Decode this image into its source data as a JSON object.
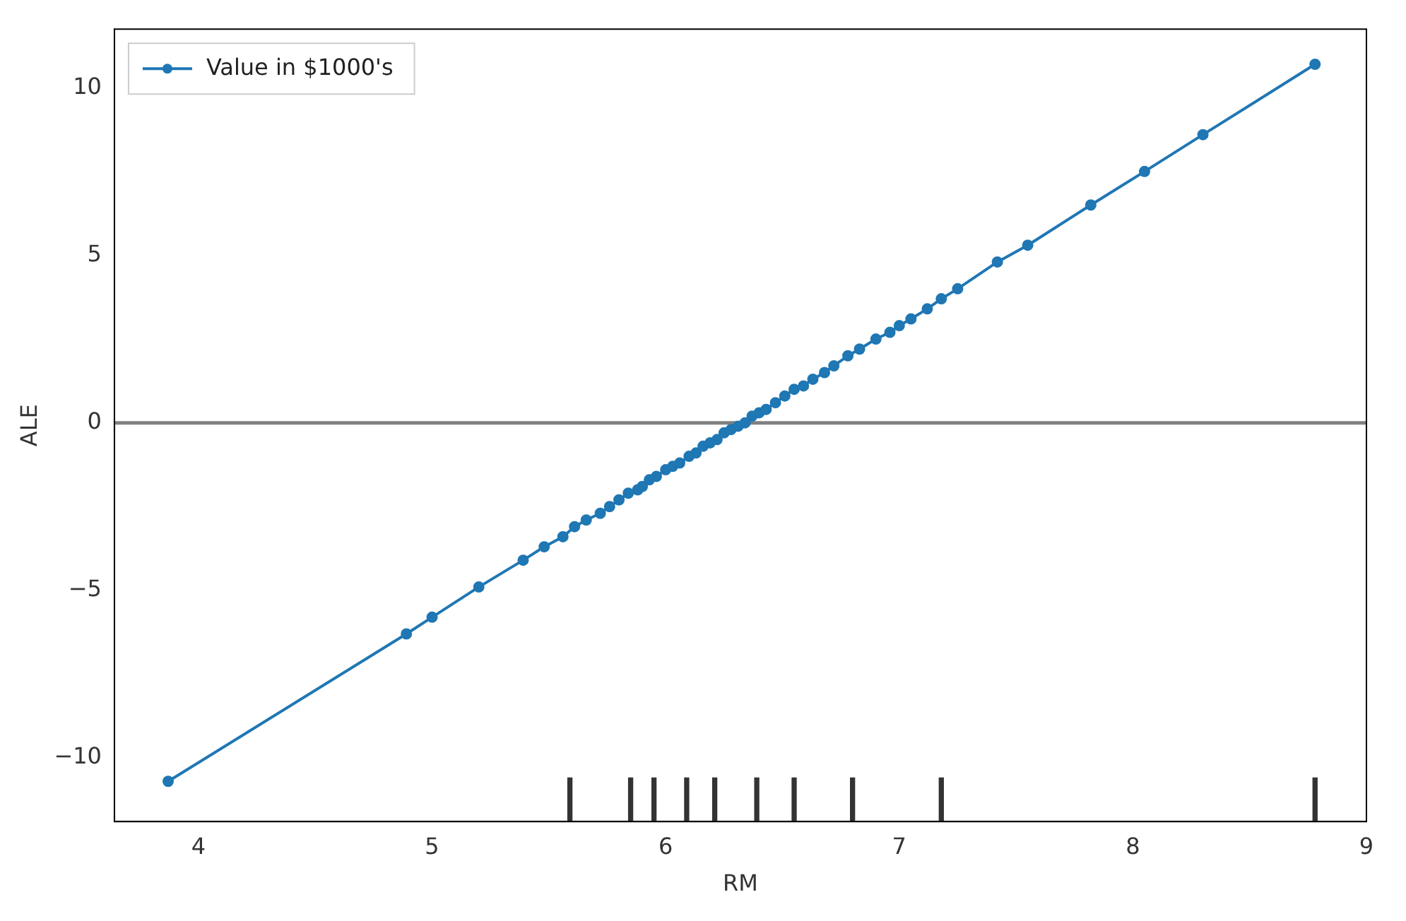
{
  "chart_data": {
    "type": "line",
    "xlabel": "RM",
    "ylabel": "ALE",
    "xlim": [
      3.64,
      9.0
    ],
    "xticks": [
      4,
      5,
      6,
      7,
      8,
      9
    ],
    "ylim": [
      -11.9,
      11.75
    ],
    "yticks": [
      {
        "value": -10,
        "label": "−10"
      },
      {
        "value": -5,
        "label": "−5"
      },
      0,
      5,
      10
    ],
    "grid": false,
    "legend": "top left",
    "marker": "circle",
    "line_style": "solid",
    "ref_lines": [
      {
        "axis": "y",
        "value": 0,
        "color": "#808080"
      }
    ],
    "series": [
      {
        "name": "Value in $1000's",
        "color": "#1f77b4",
        "x": [
          3.87,
          4.89,
          5.0,
          5.2,
          5.39,
          5.48,
          5.56,
          5.61,
          5.66,
          5.72,
          5.76,
          5.8,
          5.84,
          5.88,
          5.9,
          5.93,
          5.96,
          6.0,
          6.03,
          6.06,
          6.1,
          6.13,
          6.16,
          6.19,
          6.22,
          6.25,
          6.28,
          6.31,
          6.34,
          6.37,
          6.4,
          6.43,
          6.47,
          6.51,
          6.55,
          6.59,
          6.63,
          6.68,
          6.72,
          6.78,
          6.83,
          6.9,
          6.96,
          7.0,
          7.05,
          7.12,
          7.18,
          7.25,
          7.42,
          7.55,
          7.82,
          8.05,
          8.3,
          8.78
        ],
        "values": [
          -10.7,
          -6.3,
          -5.8,
          -4.9,
          -4.1,
          -3.7,
          -3.4,
          -3.1,
          -2.9,
          -2.7,
          -2.5,
          -2.3,
          -2.1,
          -2.0,
          -1.9,
          -1.7,
          -1.6,
          -1.4,
          -1.3,
          -1.2,
          -1.0,
          -0.9,
          -0.7,
          -0.6,
          -0.5,
          -0.3,
          -0.2,
          -0.1,
          0.0,
          0.2,
          0.3,
          0.4,
          0.6,
          0.8,
          1.0,
          1.1,
          1.3,
          1.5,
          1.7,
          2.0,
          2.2,
          2.5,
          2.7,
          2.9,
          3.1,
          3.4,
          3.7,
          4.0,
          4.8,
          5.3,
          6.5,
          7.5,
          8.6,
          10.7
        ]
      },
      {
        "type": "bar",
        "color": "#333333",
        "x": [
          5.59,
          5.85,
          5.95,
          6.09,
          6.21,
          6.39,
          6.55,
          6.8,
          7.18,
          8.78
        ],
        "base": [
          -11.9,
          -11.9,
          -11.9,
          -11.9,
          -11.9,
          -11.9,
          -11.9,
          -11.9,
          -11.9,
          -11.9
        ],
        "values": [
          1.3,
          1.3,
          1.3,
          1.3,
          1.3,
          1.3,
          1.3,
          1.3,
          1.3,
          1.3
        ]
      }
    ]
  }
}
